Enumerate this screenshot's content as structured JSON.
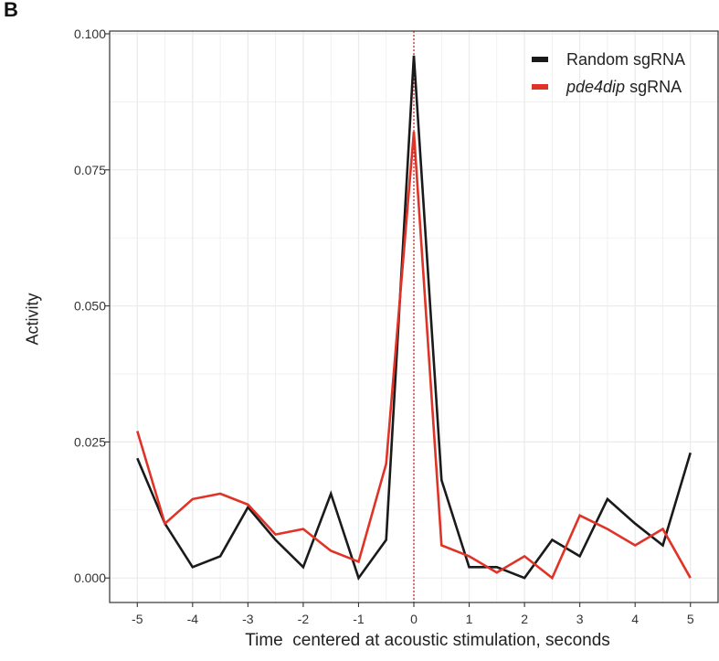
{
  "panel_label": "B",
  "colors": {
    "random": "#1a1a1a",
    "pde4dip": "#e03327",
    "vline": "#b22222",
    "grid": "#ebebeb"
  },
  "chart_data": {
    "type": "line",
    "title": "",
    "xlabel": "Time  centered at acoustic stimulation, seconds",
    "ylabel": "Activity",
    "xlim": [
      -5.5,
      5.5
    ],
    "ylim": [
      -0.0045,
      0.1005
    ],
    "x_ticks": [
      -5,
      -4,
      -3,
      -2,
      -1,
      0,
      1,
      2,
      3,
      4,
      5
    ],
    "x_tick_labels": [
      "-5",
      "-4",
      "-3",
      "-2",
      "-1",
      "0",
      "1",
      "2",
      "3",
      "4",
      "5"
    ],
    "y_ticks": [
      0,
      0.025,
      0.05,
      0.075,
      0.1
    ],
    "y_tick_labels": [
      "0.000",
      "0.025",
      "0.050",
      "0.075",
      "0.100"
    ],
    "grid": true,
    "legend_position": "top-right",
    "vline_x": 0,
    "x": [
      -5,
      -4.5,
      -4,
      -3.5,
      -3,
      -2.5,
      -2,
      -1.5,
      -1,
      -0.5,
      0,
      0.5,
      1,
      1.5,
      2,
      2.5,
      3,
      3.5,
      4,
      4.5,
      5
    ],
    "series": [
      {
        "name": "Random sgRNA",
        "name_parts": [
          "",
          "Random sgRNA"
        ],
        "values": [
          0.022,
          0.01,
          0.002,
          0.004,
          0.013,
          0.007,
          0.002,
          0.0155,
          0.0,
          0.007,
          0.096,
          0.018,
          0.002,
          0.002,
          0.0,
          0.007,
          0.004,
          0.0145,
          0.01,
          0.006,
          0.023
        ]
      },
      {
        "name": "pde4dip sgRNA",
        "name_parts": [
          "pde4dip",
          " sgRNA"
        ],
        "values": [
          0.027,
          0.01,
          0.0145,
          0.0155,
          0.0135,
          0.008,
          0.009,
          0.005,
          0.003,
          0.021,
          0.082,
          0.006,
          0.004,
          0.001,
          0.004,
          0.0,
          0.0115,
          0.009,
          0.006,
          0.009,
          0.0
        ]
      }
    ]
  }
}
